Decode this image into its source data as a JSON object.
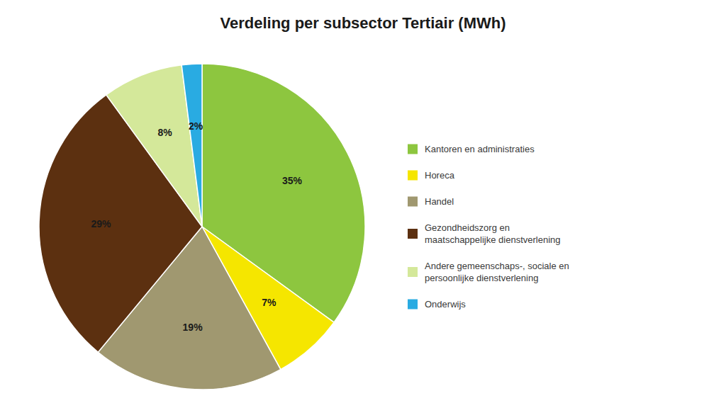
{
  "chart_data": {
    "type": "pie",
    "title": "Verdeling per subsector Tertiair (MWh)",
    "categories": [
      "Kantoren en administraties",
      "Horeca",
      "Handel",
      "Gezondheidszorg en\nmaatschappelijke dienstverlening",
      "Andere gemeenschaps-, sociale en\npersoonlijke dienstverlening",
      "Onderwijs"
    ],
    "values": [
      35,
      7,
      19,
      29,
      8,
      2
    ],
    "value_labels": [
      "35%",
      "7%",
      "19%",
      "29%",
      "8%",
      "2%"
    ],
    "colors": [
      "#8dc63f",
      "#f5e600",
      "#a09870",
      "#5c3010",
      "#d4e89a",
      "#29abe2"
    ],
    "data_labels": true,
    "legend": "right"
  }
}
